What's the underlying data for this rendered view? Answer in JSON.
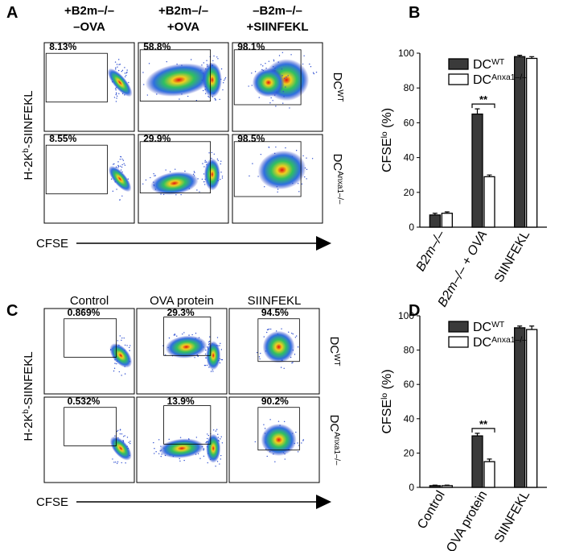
{
  "panel_labels": [
    "A",
    "B",
    "C",
    "D"
  ],
  "flow_panels": [
    {
      "columns": [
        [
          "+B2m–/–",
          "–OVA"
        ],
        [
          "+B2m–/–",
          "+OVA"
        ],
        [
          "–B2m–/–",
          "+SIINFEKL"
        ]
      ],
      "rows": [
        {
          "name": "DC",
          "sup": "WT"
        },
        {
          "name": "DC",
          "sup": "Anxa1–/–"
        }
      ],
      "gates": [
        [
          "8.13%",
          "58.8%",
          "98.1%"
        ],
        [
          "8.55%",
          "29.9%",
          "98.5%"
        ]
      ],
      "y_label": {
        "text": "H-2K",
        "sup": "b",
        "after": "-SIINFEKL"
      },
      "x_label": "CFSE"
    },
    {
      "columns": [
        [
          "Control"
        ],
        [
          "OVA protein"
        ],
        [
          "SIINFEKL"
        ]
      ],
      "rows": [
        {
          "name": "DC",
          "sup": "WT"
        },
        {
          "name": "DC",
          "sup": "Anxa1–/–"
        }
      ],
      "gates": [
        [
          "0.869%",
          "29.3%",
          "94.5%"
        ],
        [
          "0.532%",
          "13.9%",
          "90.2%"
        ]
      ],
      "y_label": {
        "text": "H-2K",
        "sup": "b",
        "after": "-SIINFEKL"
      },
      "x_label": "CFSE"
    }
  ],
  "chart_data": [
    {
      "type": "bar",
      "y_label": {
        "text": "CFSE",
        "sup": "lo",
        "after": " (%)"
      },
      "categories": [
        "B2m–/–",
        "B2m–/– + OVA",
        "SIINFEKL"
      ],
      "series": [
        {
          "name": "DC",
          "sup": "WT",
          "color": "#3a3a3a",
          "values": [
            7,
            65,
            98
          ],
          "errors": [
            1,
            3,
            0.8
          ]
        },
        {
          "name": "DC",
          "sup": "Anxa1–/–",
          "color": "#ffffff",
          "values": [
            8,
            29,
            97
          ],
          "errors": [
            0.8,
            1,
            1
          ]
        }
      ],
      "ylim": [
        0,
        100
      ],
      "yticks": [
        0,
        20,
        40,
        60,
        80,
        100
      ],
      "annotations": [
        {
          "text": "**",
          "category": 1
        }
      ]
    },
    {
      "type": "bar",
      "y_label": {
        "text": "CFSE",
        "sup": "lo",
        "after": " (%)"
      },
      "categories": [
        "Control",
        "OVA protein",
        "SIINFEKL"
      ],
      "series": [
        {
          "name": "DC",
          "sup": "WT",
          "color": "#3a3a3a",
          "values": [
            1,
            30,
            93
          ],
          "errors": [
            0.3,
            1.5,
            1
          ]
        },
        {
          "name": "DC",
          "sup": "Anxa1–/–",
          "color": "#ffffff",
          "values": [
            1,
            15,
            92
          ],
          "errors": [
            0.3,
            1.5,
            2
          ]
        }
      ],
      "ylim": [
        0,
        100
      ],
      "yticks": [
        0,
        20,
        40,
        60,
        80,
        100
      ],
      "annotations": [
        {
          "text": "**",
          "category": 1
        }
      ]
    }
  ]
}
